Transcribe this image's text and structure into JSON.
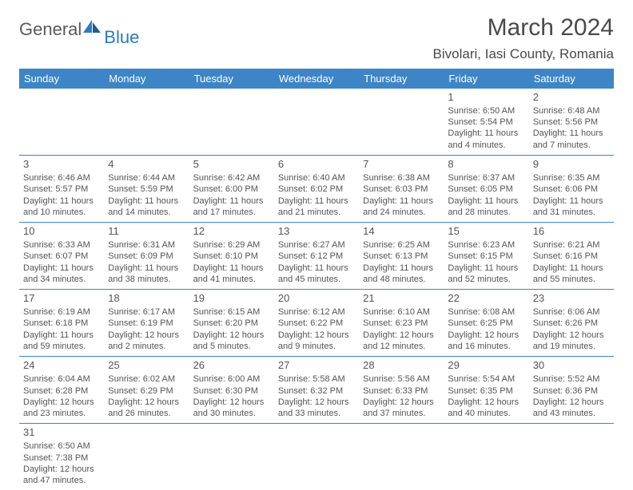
{
  "logo": {
    "general": "General",
    "blue": "Blue"
  },
  "header": {
    "title": "March 2024",
    "location": "Bivolari, Iasi County, Romania"
  },
  "colors": {
    "header_bg": "#3d85c6",
    "header_text": "#ffffff",
    "border": "#3d85c6",
    "text": "#555555",
    "logo_blue": "#2b7bbf"
  },
  "weekdays": [
    "Sunday",
    "Monday",
    "Tuesday",
    "Wednesday",
    "Thursday",
    "Friday",
    "Saturday"
  ],
  "weeks": [
    [
      null,
      null,
      null,
      null,
      null,
      {
        "day": "1",
        "sunrise": "Sunrise: 6:50 AM",
        "sunset": "Sunset: 5:54 PM",
        "daylight": "Daylight: 11 hours and 4 minutes."
      },
      {
        "day": "2",
        "sunrise": "Sunrise: 6:48 AM",
        "sunset": "Sunset: 5:56 PM",
        "daylight": "Daylight: 11 hours and 7 minutes."
      }
    ],
    [
      {
        "day": "3",
        "sunrise": "Sunrise: 6:46 AM",
        "sunset": "Sunset: 5:57 PM",
        "daylight": "Daylight: 11 hours and 10 minutes."
      },
      {
        "day": "4",
        "sunrise": "Sunrise: 6:44 AM",
        "sunset": "Sunset: 5:59 PM",
        "daylight": "Daylight: 11 hours and 14 minutes."
      },
      {
        "day": "5",
        "sunrise": "Sunrise: 6:42 AM",
        "sunset": "Sunset: 6:00 PM",
        "daylight": "Daylight: 11 hours and 17 minutes."
      },
      {
        "day": "6",
        "sunrise": "Sunrise: 6:40 AM",
        "sunset": "Sunset: 6:02 PM",
        "daylight": "Daylight: 11 hours and 21 minutes."
      },
      {
        "day": "7",
        "sunrise": "Sunrise: 6:38 AM",
        "sunset": "Sunset: 6:03 PM",
        "daylight": "Daylight: 11 hours and 24 minutes."
      },
      {
        "day": "8",
        "sunrise": "Sunrise: 6:37 AM",
        "sunset": "Sunset: 6:05 PM",
        "daylight": "Daylight: 11 hours and 28 minutes."
      },
      {
        "day": "9",
        "sunrise": "Sunrise: 6:35 AM",
        "sunset": "Sunset: 6:06 PM",
        "daylight": "Daylight: 11 hours and 31 minutes."
      }
    ],
    [
      {
        "day": "10",
        "sunrise": "Sunrise: 6:33 AM",
        "sunset": "Sunset: 6:07 PM",
        "daylight": "Daylight: 11 hours and 34 minutes."
      },
      {
        "day": "11",
        "sunrise": "Sunrise: 6:31 AM",
        "sunset": "Sunset: 6:09 PM",
        "daylight": "Daylight: 11 hours and 38 minutes."
      },
      {
        "day": "12",
        "sunrise": "Sunrise: 6:29 AM",
        "sunset": "Sunset: 6:10 PM",
        "daylight": "Daylight: 11 hours and 41 minutes."
      },
      {
        "day": "13",
        "sunrise": "Sunrise: 6:27 AM",
        "sunset": "Sunset: 6:12 PM",
        "daylight": "Daylight: 11 hours and 45 minutes."
      },
      {
        "day": "14",
        "sunrise": "Sunrise: 6:25 AM",
        "sunset": "Sunset: 6:13 PM",
        "daylight": "Daylight: 11 hours and 48 minutes."
      },
      {
        "day": "15",
        "sunrise": "Sunrise: 6:23 AM",
        "sunset": "Sunset: 6:15 PM",
        "daylight": "Daylight: 11 hours and 52 minutes."
      },
      {
        "day": "16",
        "sunrise": "Sunrise: 6:21 AM",
        "sunset": "Sunset: 6:16 PM",
        "daylight": "Daylight: 11 hours and 55 minutes."
      }
    ],
    [
      {
        "day": "17",
        "sunrise": "Sunrise: 6:19 AM",
        "sunset": "Sunset: 6:18 PM",
        "daylight": "Daylight: 11 hours and 59 minutes."
      },
      {
        "day": "18",
        "sunrise": "Sunrise: 6:17 AM",
        "sunset": "Sunset: 6:19 PM",
        "daylight": "Daylight: 12 hours and 2 minutes."
      },
      {
        "day": "19",
        "sunrise": "Sunrise: 6:15 AM",
        "sunset": "Sunset: 6:20 PM",
        "daylight": "Daylight: 12 hours and 5 minutes."
      },
      {
        "day": "20",
        "sunrise": "Sunrise: 6:12 AM",
        "sunset": "Sunset: 6:22 PM",
        "daylight": "Daylight: 12 hours and 9 minutes."
      },
      {
        "day": "21",
        "sunrise": "Sunrise: 6:10 AM",
        "sunset": "Sunset: 6:23 PM",
        "daylight": "Daylight: 12 hours and 12 minutes."
      },
      {
        "day": "22",
        "sunrise": "Sunrise: 6:08 AM",
        "sunset": "Sunset: 6:25 PM",
        "daylight": "Daylight: 12 hours and 16 minutes."
      },
      {
        "day": "23",
        "sunrise": "Sunrise: 6:06 AM",
        "sunset": "Sunset: 6:26 PM",
        "daylight": "Daylight: 12 hours and 19 minutes."
      }
    ],
    [
      {
        "day": "24",
        "sunrise": "Sunrise: 6:04 AM",
        "sunset": "Sunset: 6:28 PM",
        "daylight": "Daylight: 12 hours and 23 minutes."
      },
      {
        "day": "25",
        "sunrise": "Sunrise: 6:02 AM",
        "sunset": "Sunset: 6:29 PM",
        "daylight": "Daylight: 12 hours and 26 minutes."
      },
      {
        "day": "26",
        "sunrise": "Sunrise: 6:00 AM",
        "sunset": "Sunset: 6:30 PM",
        "daylight": "Daylight: 12 hours and 30 minutes."
      },
      {
        "day": "27",
        "sunrise": "Sunrise: 5:58 AM",
        "sunset": "Sunset: 6:32 PM",
        "daylight": "Daylight: 12 hours and 33 minutes."
      },
      {
        "day": "28",
        "sunrise": "Sunrise: 5:56 AM",
        "sunset": "Sunset: 6:33 PM",
        "daylight": "Daylight: 12 hours and 37 minutes."
      },
      {
        "day": "29",
        "sunrise": "Sunrise: 5:54 AM",
        "sunset": "Sunset: 6:35 PM",
        "daylight": "Daylight: 12 hours and 40 minutes."
      },
      {
        "day": "30",
        "sunrise": "Sunrise: 5:52 AM",
        "sunset": "Sunset: 6:36 PM",
        "daylight": "Daylight: 12 hours and 43 minutes."
      }
    ],
    [
      {
        "day": "31",
        "sunrise": "Sunrise: 6:50 AM",
        "sunset": "Sunset: 7:38 PM",
        "daylight": "Daylight: 12 hours and 47 minutes."
      },
      null,
      null,
      null,
      null,
      null,
      null
    ]
  ]
}
